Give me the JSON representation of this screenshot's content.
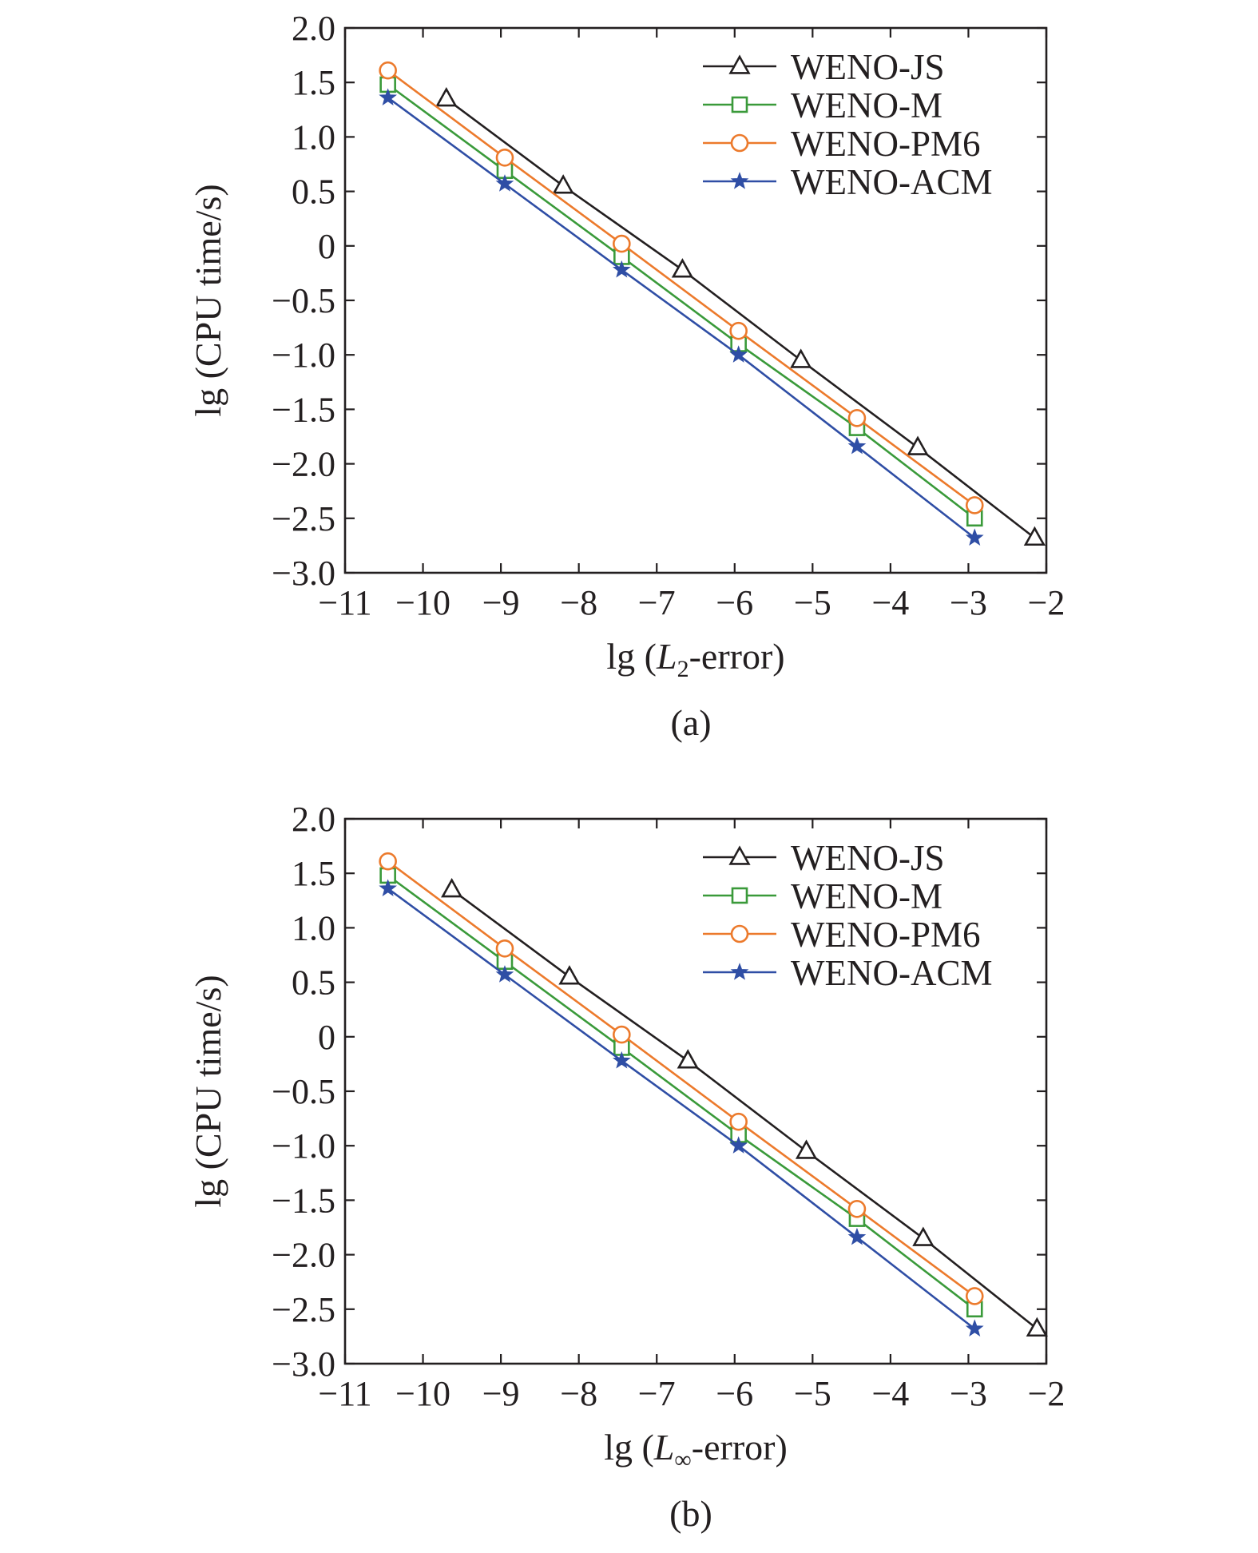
{
  "colors": {
    "weno_js": "#231f20",
    "weno_m": "#3a9a3a",
    "weno_pm6": "#ec7a2c",
    "weno_acm": "#2f4ea5",
    "axis": "#231f20"
  },
  "chart_data": [
    {
      "type": "line",
      "caption": "(a)",
      "xlabel": {
        "prefix": "lg (",
        "var": "L",
        "sub": "2",
        "suffix": "-error)"
      },
      "ylabel": "lg (CPU time/s)",
      "xlim": [
        -11,
        -2
      ],
      "ylim": [
        -3.0,
        2.0
      ],
      "xticks": [
        -11,
        -10,
        -9,
        -8,
        -7,
        -6,
        -5,
        -4,
        -3,
        -2
      ],
      "xtick_labels": [
        "−11",
        "−10",
        "−9",
        "−8",
        "−7",
        "−6",
        "−5",
        "−4",
        "−3",
        "−2"
      ],
      "yticks": [
        2.0,
        1.5,
        1.0,
        0.5,
        0,
        -0.5,
        -1.0,
        -1.5,
        -2.0,
        -2.5,
        -3.0
      ],
      "ytick_labels": [
        "2.0",
        "1.5",
        "1.0",
        "0.5",
        "0",
        "−0.5",
        "−1.0",
        "−1.5",
        "−2.0",
        "−2.5",
        "−3.0"
      ],
      "legend_position": "top-right",
      "series": [
        {
          "name": "WENO-JS",
          "color_key": "weno_js",
          "marker": "triangle",
          "x": [
            -9.7,
            -8.2,
            -6.67,
            -5.15,
            -3.65,
            -2.15
          ],
          "y": [
            1.35,
            0.55,
            -0.22,
            -1.05,
            -1.85,
            -2.68
          ]
        },
        {
          "name": "WENO-M",
          "color_key": "weno_m",
          "marker": "square",
          "x": [
            -10.45,
            -8.95,
            -7.45,
            -5.95,
            -4.43,
            -2.92
          ],
          "y": [
            1.48,
            0.69,
            -0.1,
            -0.9,
            -1.67,
            -2.5
          ]
        },
        {
          "name": "WENO-PM6",
          "color_key": "weno_pm6",
          "marker": "circle",
          "x": [
            -10.45,
            -8.95,
            -7.45,
            -5.95,
            -4.43,
            -2.92
          ],
          "y": [
            1.61,
            0.81,
            0.02,
            -0.78,
            -1.58,
            -2.38
          ]
        },
        {
          "name": "WENO-ACM",
          "color_key": "weno_acm",
          "marker": "star",
          "x": [
            -10.45,
            -8.95,
            -7.45,
            -5.95,
            -4.43,
            -2.92
          ],
          "y": [
            1.36,
            0.57,
            -0.22,
            -1.0,
            -1.84,
            -2.68
          ]
        }
      ]
    },
    {
      "type": "line",
      "caption": "(b)",
      "xlabel": {
        "prefix": "lg (",
        "var": "L",
        "sub": "∞",
        "suffix": "-error)"
      },
      "ylabel": "lg (CPU time/s)",
      "xlim": [
        -11,
        -2
      ],
      "ylim": [
        -3.0,
        2.0
      ],
      "xticks": [
        -11,
        -10,
        -9,
        -8,
        -7,
        -6,
        -5,
        -4,
        -3,
        -2
      ],
      "xtick_labels": [
        "−11",
        "−10",
        "−9",
        "−8",
        "−7",
        "−6",
        "−5",
        "−4",
        "−3",
        "−2"
      ],
      "yticks": [
        2.0,
        1.5,
        1.0,
        0.5,
        0,
        -0.5,
        -1.0,
        -1.5,
        -2.0,
        -2.5,
        -3.0
      ],
      "ytick_labels": [
        "2.0",
        "1.5",
        "1.0",
        "0.5",
        "0",
        "−0.5",
        "−1.0",
        "−1.5",
        "−2.0",
        "−2.5",
        "−3.0"
      ],
      "legend_position": "top-right",
      "series": [
        {
          "name": "WENO-JS",
          "color_key": "weno_js",
          "marker": "triangle",
          "x": [
            -9.63,
            -8.12,
            -6.6,
            -5.08,
            -3.58,
            -2.12
          ],
          "y": [
            1.35,
            0.55,
            -0.22,
            -1.05,
            -1.85,
            -2.68
          ]
        },
        {
          "name": "WENO-M",
          "color_key": "weno_m",
          "marker": "square",
          "x": [
            -10.45,
            -8.95,
            -7.45,
            -5.95,
            -4.43,
            -2.92
          ],
          "y": [
            1.48,
            0.69,
            -0.1,
            -0.9,
            -1.67,
            -2.5
          ]
        },
        {
          "name": "WENO-PM6",
          "color_key": "weno_pm6",
          "marker": "circle",
          "x": [
            -10.45,
            -8.95,
            -7.45,
            -5.95,
            -4.43,
            -2.92
          ],
          "y": [
            1.61,
            0.81,
            0.02,
            -0.78,
            -1.58,
            -2.38
          ]
        },
        {
          "name": "WENO-ACM",
          "color_key": "weno_acm",
          "marker": "star",
          "x": [
            -10.45,
            -8.95,
            -7.45,
            -5.95,
            -4.43,
            -2.92
          ],
          "y": [
            1.36,
            0.57,
            -0.22,
            -1.0,
            -1.84,
            -2.68
          ]
        }
      ]
    }
  ]
}
